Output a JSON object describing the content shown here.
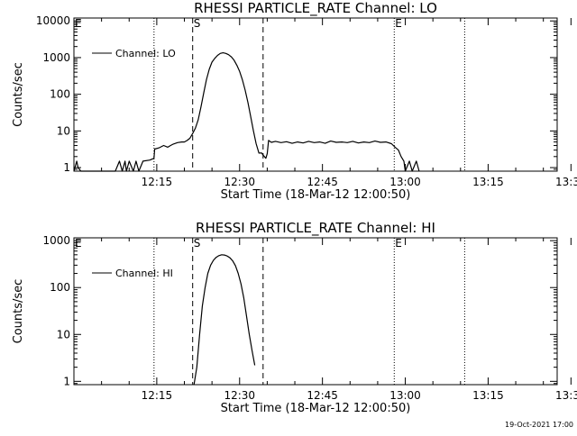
{
  "stamp": "19-Oct-2021 17:00",
  "chart_data": [
    {
      "type": "line",
      "title": "RHESSI PARTICLE_RATE Channel: LO",
      "xlabel": "Start Time (18-Mar-12 12:00:50)",
      "ylabel": "Counts/sec",
      "yscale": "log",
      "xlim": [
        3,
        38
      ],
      "ylim": [
        0.8,
        12000
      ],
      "x_ticks": [
        15,
        30,
        45,
        60,
        75,
        90
      ],
      "x_tick_labels": [
        "12:15",
        "12:30",
        "12:45",
        "13:00",
        "13:15",
        "13:30"
      ],
      "y_ticks": [
        1,
        10,
        100,
        1000,
        10000
      ],
      "y_tick_labels": [
        "1",
        "10",
        "100",
        "1000",
        "10000"
      ],
      "legend": {
        "position": "top-left",
        "label": "Channel: LO"
      },
      "markers": [
        {
          "label": "E",
          "x": 3.0,
          "style": "dotted"
        },
        {
          "label": "",
          "x": 8.8,
          "style": "dotted"
        },
        {
          "label": "S",
          "x": 11.6,
          "style": "dashed"
        },
        {
          "label": "",
          "x": 16.7,
          "style": "dashed"
        },
        {
          "label": "E",
          "x": 26.2,
          "style": "dotted"
        },
        {
          "label": "",
          "x": 31.3,
          "style": "dotted"
        }
      ],
      "series": [
        {
          "name": "Channel: LO",
          "points": [
            [
              3.0,
              0.8
            ],
            [
              3.2,
              1.5
            ],
            [
              3.3,
              1.0
            ],
            [
              3.5,
              0.8
            ],
            [
              6.0,
              0.8
            ],
            [
              6.3,
              1.5
            ],
            [
              6.5,
              0.8
            ],
            [
              6.7,
              1.5
            ],
            [
              6.8,
              0.8
            ],
            [
              7.0,
              1.5
            ],
            [
              7.3,
              0.8
            ],
            [
              7.5,
              1.5
            ],
            [
              7.7,
              0.8
            ],
            [
              8.0,
              1.5
            ],
            [
              8.5,
              1.6
            ],
            [
              8.8,
              1.8
            ],
            [
              8.85,
              3.2
            ],
            [
              9.2,
              3.5
            ],
            [
              9.5,
              4.0
            ],
            [
              9.8,
              3.6
            ],
            [
              10.0,
              4.0
            ],
            [
              10.2,
              4.4
            ],
            [
              10.5,
              4.8
            ],
            [
              10.8,
              5.0
            ],
            [
              11.0,
              5.0
            ],
            [
              11.2,
              5.5
            ],
            [
              11.4,
              6.3
            ],
            [
              11.6,
              8.5
            ],
            [
              11.8,
              12
            ],
            [
              12.0,
              20
            ],
            [
              12.2,
              45
            ],
            [
              12.4,
              110
            ],
            [
              12.6,
              250
            ],
            [
              12.8,
              480
            ],
            [
              13.0,
              750
            ],
            [
              13.2,
              950
            ],
            [
              13.4,
              1150
            ],
            [
              13.6,
              1300
            ],
            [
              13.8,
              1350
            ],
            [
              14.0,
              1300
            ],
            [
              14.2,
              1200
            ],
            [
              14.4,
              1050
            ],
            [
              14.6,
              850
            ],
            [
              14.8,
              620
            ],
            [
              15.0,
              420
            ],
            [
              15.2,
              250
            ],
            [
              15.4,
              130
            ],
            [
              15.6,
              60
            ],
            [
              15.8,
              25
            ],
            [
              16.0,
              10
            ],
            [
              16.2,
              4.5
            ],
            [
              16.4,
              2.5
            ],
            [
              16.6,
              2.5
            ],
            [
              16.7,
              2.2
            ],
            [
              16.9,
              1.8
            ],
            [
              17.0,
              2.4
            ],
            [
              17.1,
              5.5
            ],
            [
              17.3,
              4.9
            ],
            [
              17.6,
              5.2
            ],
            [
              18.0,
              4.8
            ],
            [
              18.4,
              5.1
            ],
            [
              18.8,
              4.6
            ],
            [
              19.2,
              5.0
            ],
            [
              19.6,
              4.7
            ],
            [
              20.0,
              5.2
            ],
            [
              20.4,
              4.8
            ],
            [
              20.8,
              5.0
            ],
            [
              21.2,
              4.6
            ],
            [
              21.6,
              5.3
            ],
            [
              22.0,
              4.9
            ],
            [
              22.4,
              5.0
            ],
            [
              22.8,
              4.8
            ],
            [
              23.2,
              5.2
            ],
            [
              23.6,
              4.7
            ],
            [
              24.0,
              5.0
            ],
            [
              24.4,
              4.8
            ],
            [
              24.8,
              5.3
            ],
            [
              25.2,
              4.9
            ],
            [
              25.6,
              5.0
            ],
            [
              26.0,
              4.5
            ],
            [
              26.3,
              3.5
            ],
            [
              26.5,
              3.0
            ],
            [
              26.7,
              2.0
            ],
            [
              26.9,
              1.5
            ],
            [
              27.0,
              0.8
            ],
            [
              27.3,
              1.5
            ],
            [
              27.5,
              0.8
            ],
            [
              27.8,
              1.5
            ],
            [
              28.0,
              0.8
            ]
          ]
        }
      ]
    },
    {
      "type": "line",
      "title": "RHESSI PARTICLE_RATE Channel: HI",
      "xlabel": "Start Time (18-Mar-12 12:00:50)",
      "ylabel": "Counts/sec",
      "yscale": "log",
      "xlim": [
        3,
        38
      ],
      "ylim": [
        0.85,
        1150
      ],
      "x_ticks": [
        15,
        30,
        45,
        60,
        75,
        90
      ],
      "x_tick_labels": [
        "12:15",
        "12:30",
        "12:45",
        "13:00",
        "13:15",
        "13:30"
      ],
      "y_ticks": [
        1,
        10,
        100,
        1000
      ],
      "y_tick_labels": [
        "1",
        "10",
        "100",
        "1000"
      ],
      "legend": {
        "position": "top-left",
        "label": "Channel: HI"
      },
      "markers": [
        {
          "label": "E",
          "x": 3.0,
          "style": "dotted"
        },
        {
          "label": "",
          "x": 8.8,
          "style": "dotted"
        },
        {
          "label": "S",
          "x": 11.6,
          "style": "dashed"
        },
        {
          "label": "",
          "x": 16.7,
          "style": "dashed"
        },
        {
          "label": "E",
          "x": 26.2,
          "style": "dotted"
        },
        {
          "label": "",
          "x": 31.3,
          "style": "dotted"
        }
      ],
      "series": [
        {
          "name": "Channel: HI",
          "points": [
            [
              11.7,
              0.85
            ],
            [
              11.9,
              2
            ],
            [
              12.1,
              10
            ],
            [
              12.3,
              40
            ],
            [
              12.5,
              100
            ],
            [
              12.7,
              200
            ],
            [
              12.9,
              300
            ],
            [
              13.1,
              380
            ],
            [
              13.3,
              440
            ],
            [
              13.5,
              480
            ],
            [
              13.7,
              500
            ],
            [
              13.9,
              495
            ],
            [
              14.1,
              470
            ],
            [
              14.3,
              430
            ],
            [
              14.5,
              370
            ],
            [
              14.7,
              290
            ],
            [
              14.9,
              200
            ],
            [
              15.1,
              120
            ],
            [
              15.3,
              60
            ],
            [
              15.5,
              25
            ],
            [
              15.7,
              10
            ],
            [
              15.9,
              4.5
            ],
            [
              16.1,
              2.2
            ]
          ]
        }
      ]
    }
  ]
}
